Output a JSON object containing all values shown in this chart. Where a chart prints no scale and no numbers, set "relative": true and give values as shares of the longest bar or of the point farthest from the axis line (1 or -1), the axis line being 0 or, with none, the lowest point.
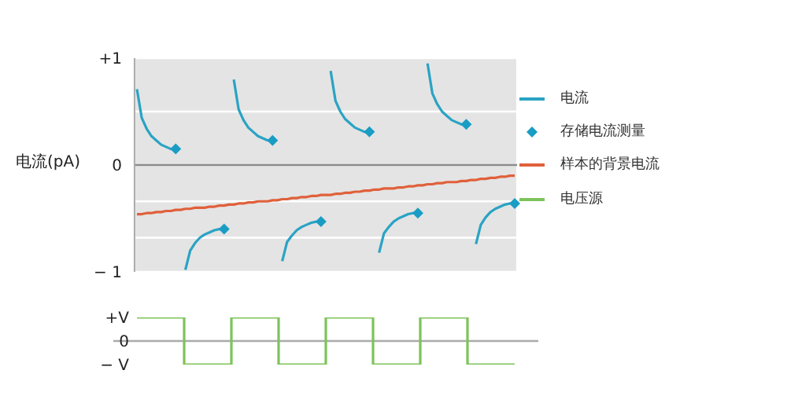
{
  "chart_data": [
    {
      "type": "line",
      "ylabel": "电流(pA)",
      "categories": [
        null,
        null,
        null,
        null,
        null,
        null,
        null,
        null,
        null,
        null,
        null,
        null,
        null,
        null,
        null,
        null,
        null,
        null,
        null,
        null,
        null,
        null,
        null,
        null,
        null,
        null,
        null,
        null,
        null,
        null,
        null,
        null,
        null,
        null,
        null,
        null,
        null,
        null,
        null,
        null,
        null,
        null,
        null,
        null,
        null,
        null,
        null,
        null,
        null,
        null,
        null,
        null,
        null,
        null,
        null,
        null,
        null,
        null,
        null,
        null,
        null,
        null,
        null,
        null,
        null,
        null,
        null,
        null,
        null,
        null,
        null,
        null,
        null,
        null,
        null,
        null,
        null,
        null,
        null
      ],
      "ylim": [
        -1,
        1
      ],
      "yticks": [
        {
          "value": -1,
          "label": "− 1"
        },
        {
          "value": -0.68,
          "label": null
        },
        {
          "value": -0.34,
          "label": null
        },
        {
          "value": 0,
          "label": "0"
        },
        {
          "value": 0.5,
          "label": null
        },
        {
          "value": 1,
          "label": "+1"
        }
      ],
      "tick_labels": "y",
      "grid": true,
      "legend": "right",
      "ref_lines": [
        {
          "axis": "y",
          "value": 0,
          "label": null,
          "color": "#8c8c8c"
        }
      ],
      "series": [
        {
          "name": "电流",
          "color": "#2aa3c4",
          "marker": "none",
          "values": [
            0.71,
            0.44,
            0.34,
            0.27,
            0.23,
            0.19,
            0.17,
            0.15,
            0.15,
            null,
            -0.98,
            -0.8,
            -0.73,
            -0.68,
            -0.65,
            -0.63,
            -0.61,
            -0.6,
            -0.6,
            null,
            0.8,
            0.52,
            0.42,
            0.35,
            0.31,
            0.27,
            0.25,
            0.23,
            0.23,
            null,
            -0.9,
            -0.72,
            -0.66,
            -0.61,
            -0.58,
            -0.56,
            -0.54,
            -0.53,
            -0.53,
            null,
            0.88,
            0.6,
            0.5,
            0.43,
            0.39,
            0.35,
            0.33,
            0.31,
            0.31,
            null,
            -0.82,
            -0.64,
            -0.58,
            -0.53,
            -0.5,
            -0.48,
            -0.46,
            -0.45,
            -0.45,
            null,
            0.95,
            0.67,
            0.57,
            0.5,
            0.46,
            0.42,
            0.4,
            0.38,
            0.38,
            null,
            -0.74,
            -0.56,
            -0.49,
            -0.44,
            -0.41,
            -0.39,
            -0.37,
            -0.36,
            -0.36
          ]
        },
        {
          "name": "存储电流测量",
          "type": "scatter",
          "color": "#1a9dc4",
          "marker": "diamond",
          "values": [
            null,
            null,
            null,
            null,
            null,
            null,
            null,
            null,
            0.15,
            null,
            null,
            null,
            null,
            null,
            null,
            null,
            null,
            null,
            -0.6,
            null,
            null,
            null,
            null,
            null,
            null,
            null,
            null,
            null,
            0.23,
            null,
            null,
            null,
            null,
            null,
            null,
            null,
            null,
            null,
            -0.53,
            null,
            null,
            null,
            null,
            null,
            null,
            null,
            null,
            null,
            0.31,
            null,
            null,
            null,
            null,
            null,
            null,
            null,
            null,
            null,
            -0.45,
            null,
            null,
            null,
            null,
            null,
            null,
            null,
            null,
            null,
            0.38,
            null,
            null,
            null,
            null,
            null,
            null,
            null,
            null,
            null,
            -0.36
          ]
        },
        {
          "name": "样本的背景电流",
          "color": "#e0603a",
          "marker": "none",
          "values": [
            -0.46,
            -0.46,
            -0.45,
            -0.45,
            -0.44,
            -0.44,
            -0.43,
            -0.43,
            -0.42,
            -0.42,
            -0.41,
            -0.41,
            -0.4,
            -0.4,
            -0.4,
            -0.39,
            -0.39,
            -0.38,
            -0.38,
            -0.37,
            -0.37,
            -0.36,
            -0.36,
            -0.35,
            -0.35,
            -0.34,
            -0.34,
            -0.34,
            -0.33,
            -0.33,
            -0.32,
            -0.32,
            -0.31,
            -0.31,
            -0.3,
            -0.3,
            -0.29,
            -0.29,
            -0.28,
            -0.28,
            -0.28,
            -0.27,
            -0.27,
            -0.26,
            -0.26,
            -0.25,
            -0.25,
            -0.24,
            -0.24,
            -0.23,
            -0.23,
            -0.22,
            -0.22,
            -0.22,
            -0.21,
            -0.21,
            -0.2,
            -0.2,
            -0.19,
            -0.19,
            -0.18,
            -0.18,
            -0.17,
            -0.17,
            -0.16,
            -0.16,
            -0.16,
            -0.15,
            -0.15,
            -0.14,
            -0.14,
            -0.13,
            -0.13,
            -0.12,
            -0.12,
            -0.11,
            -0.11,
            -0.1,
            -0.1
          ]
        }
      ]
    },
    {
      "type": "step",
      "categories": [
        null,
        null,
        null,
        null,
        null,
        null,
        null,
        null,
        null
      ],
      "relative": true,
      "annotations": [
        "+V",
        "0",
        "− V"
      ],
      "legend": "right",
      "ref_lines": [
        {
          "axis": "y",
          "value": 0,
          "label": null,
          "color": "#aaaaaa"
        }
      ],
      "series": [
        {
          "name": "电压源",
          "color": "#7dc35a",
          "marker": "none",
          "values": [
            1,
            -1,
            1,
            -1,
            1,
            -1,
            1,
            -1,
            -1
          ]
        }
      ]
    }
  ]
}
